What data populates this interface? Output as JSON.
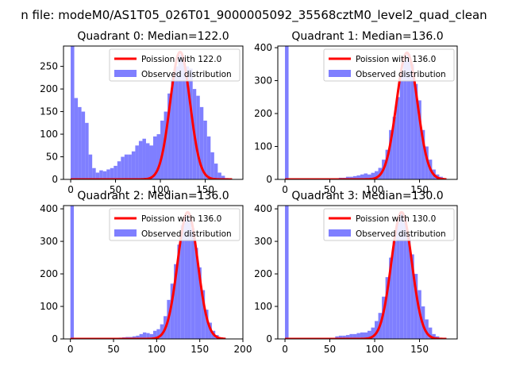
{
  "figure": {
    "suptitle": "n file: modeM0/AS1T05_026T01_9000005092_35568cztM0_level2_quad_clean"
  },
  "chart_data": [
    {
      "type": "bar+line",
      "title": "Quadrant 0: Median=122.0",
      "median": 122.0,
      "peak_height": 282,
      "legend": [
        "Poission with 122.0",
        "Observed distribution"
      ],
      "xticks": [
        0,
        50,
        100,
        150
      ],
      "yticks": [
        0,
        50,
        100,
        150,
        200,
        250
      ],
      "xlim": [
        -8,
        192
      ],
      "ylim": [
        0,
        295
      ],
      "bin_width": 4,
      "hist": [
        {
          "x": 0,
          "y": 295
        },
        {
          "x": 4,
          "y": 180
        },
        {
          "x": 8,
          "y": 160
        },
        {
          "x": 12,
          "y": 150
        },
        {
          "x": 16,
          "y": 125
        },
        {
          "x": 20,
          "y": 55
        },
        {
          "x": 24,
          "y": 25
        },
        {
          "x": 28,
          "y": 15
        },
        {
          "x": 32,
          "y": 20
        },
        {
          "x": 36,
          "y": 18
        },
        {
          "x": 40,
          "y": 22
        },
        {
          "x": 44,
          "y": 25
        },
        {
          "x": 48,
          "y": 30
        },
        {
          "x": 52,
          "y": 40
        },
        {
          "x": 56,
          "y": 50
        },
        {
          "x": 60,
          "y": 55
        },
        {
          "x": 64,
          "y": 55
        },
        {
          "x": 68,
          "y": 62
        },
        {
          "x": 72,
          "y": 75
        },
        {
          "x": 76,
          "y": 85
        },
        {
          "x": 80,
          "y": 90
        },
        {
          "x": 84,
          "y": 80
        },
        {
          "x": 88,
          "y": 75
        },
        {
          "x": 92,
          "y": 95
        },
        {
          "x": 96,
          "y": 100
        },
        {
          "x": 100,
          "y": 130
        },
        {
          "x": 104,
          "y": 150
        },
        {
          "x": 108,
          "y": 190
        },
        {
          "x": 112,
          "y": 235
        },
        {
          "x": 116,
          "y": 250
        },
        {
          "x": 120,
          "y": 275
        },
        {
          "x": 124,
          "y": 260
        },
        {
          "x": 128,
          "y": 250
        },
        {
          "x": 132,
          "y": 245
        },
        {
          "x": 136,
          "y": 200
        },
        {
          "x": 140,
          "y": 185
        },
        {
          "x": 144,
          "y": 160
        },
        {
          "x": 148,
          "y": 130
        },
        {
          "x": 152,
          "y": 95
        },
        {
          "x": 156,
          "y": 60
        },
        {
          "x": 160,
          "y": 35
        },
        {
          "x": 164,
          "y": 15
        },
        {
          "x": 168,
          "y": 8
        },
        {
          "x": 172,
          "y": 3
        }
      ]
    },
    {
      "type": "bar+line",
      "title": "Quadrant 1: Median=136.0",
      "median": 136.0,
      "peak_height": 385,
      "legend": [
        "Poission with 136.0",
        "Observed distribution"
      ],
      "xticks": [
        0,
        50,
        100,
        150
      ],
      "yticks": [
        0,
        100,
        200,
        300,
        400
      ],
      "xlim": [
        -8,
        192
      ],
      "ylim": [
        0,
        405
      ],
      "bin_width": 4,
      "hist": [
        {
          "x": 0,
          "y": 405
        },
        {
          "x": 60,
          "y": 5
        },
        {
          "x": 64,
          "y": 5
        },
        {
          "x": 68,
          "y": 8
        },
        {
          "x": 72,
          "y": 8
        },
        {
          "x": 76,
          "y": 10
        },
        {
          "x": 80,
          "y": 12
        },
        {
          "x": 84,
          "y": 15
        },
        {
          "x": 88,
          "y": 18
        },
        {
          "x": 92,
          "y": 15
        },
        {
          "x": 96,
          "y": 20
        },
        {
          "x": 100,
          "y": 25
        },
        {
          "x": 104,
          "y": 35
        },
        {
          "x": 108,
          "y": 60
        },
        {
          "x": 112,
          "y": 90
        },
        {
          "x": 116,
          "y": 150
        },
        {
          "x": 120,
          "y": 190
        },
        {
          "x": 124,
          "y": 250
        },
        {
          "x": 128,
          "y": 330
        },
        {
          "x": 132,
          "y": 360
        },
        {
          "x": 136,
          "y": 380
        },
        {
          "x": 140,
          "y": 350
        },
        {
          "x": 144,
          "y": 290
        },
        {
          "x": 148,
          "y": 240
        },
        {
          "x": 152,
          "y": 150
        },
        {
          "x": 156,
          "y": 100
        },
        {
          "x": 160,
          "y": 60
        },
        {
          "x": 164,
          "y": 30
        },
        {
          "x": 168,
          "y": 15
        },
        {
          "x": 172,
          "y": 8
        }
      ]
    },
    {
      "type": "bar+line",
      "title": "Quadrant 2: Median=136.0",
      "median": 136.0,
      "peak_height": 390,
      "legend": [
        "Poission with 136.0",
        "Observed distribution"
      ],
      "xticks": [
        0,
        50,
        100,
        150,
        200
      ],
      "yticks": [
        0,
        100,
        200,
        300,
        400
      ],
      "xlim": [
        -8,
        200
      ],
      "ylim": [
        0,
        410
      ],
      "bin_width": 4,
      "hist": [
        {
          "x": 0,
          "y": 410
        },
        {
          "x": 56,
          "y": 4
        },
        {
          "x": 60,
          "y": 5
        },
        {
          "x": 64,
          "y": 6
        },
        {
          "x": 68,
          "y": 6
        },
        {
          "x": 72,
          "y": 8
        },
        {
          "x": 76,
          "y": 10
        },
        {
          "x": 80,
          "y": 15
        },
        {
          "x": 84,
          "y": 20
        },
        {
          "x": 88,
          "y": 18
        },
        {
          "x": 92,
          "y": 15
        },
        {
          "x": 96,
          "y": 25
        },
        {
          "x": 100,
          "y": 30
        },
        {
          "x": 104,
          "y": 45
        },
        {
          "x": 108,
          "y": 70
        },
        {
          "x": 112,
          "y": 120
        },
        {
          "x": 116,
          "y": 170
        },
        {
          "x": 120,
          "y": 230
        },
        {
          "x": 124,
          "y": 290
        },
        {
          "x": 128,
          "y": 350
        },
        {
          "x": 132,
          "y": 380
        },
        {
          "x": 136,
          "y": 370
        },
        {
          "x": 140,
          "y": 340
        },
        {
          "x": 144,
          "y": 280
        },
        {
          "x": 148,
          "y": 220
        },
        {
          "x": 152,
          "y": 150
        },
        {
          "x": 156,
          "y": 90
        },
        {
          "x": 160,
          "y": 50
        },
        {
          "x": 164,
          "y": 25
        },
        {
          "x": 168,
          "y": 12
        },
        {
          "x": 172,
          "y": 5
        },
        {
          "x": 176,
          "y": 3
        }
      ]
    },
    {
      "type": "bar+line",
      "title": "Quadrant 3: Median=130.0",
      "median": 130.0,
      "peak_height": 390,
      "legend": [
        "Poission with 130.0",
        "Observed distribution"
      ],
      "xticks": [
        0,
        50,
        100,
        150
      ],
      "yticks": [
        0,
        100,
        200,
        300,
        400
      ],
      "xlim": [
        -8,
        192
      ],
      "ylim": [
        0,
        410
      ],
      "bin_width": 4,
      "hist": [
        {
          "x": 0,
          "y": 410
        },
        {
          "x": 56,
          "y": 8
        },
        {
          "x": 60,
          "y": 10
        },
        {
          "x": 64,
          "y": 10
        },
        {
          "x": 68,
          "y": 12
        },
        {
          "x": 72,
          "y": 15
        },
        {
          "x": 76,
          "y": 15
        },
        {
          "x": 80,
          "y": 18
        },
        {
          "x": 84,
          "y": 20
        },
        {
          "x": 88,
          "y": 20
        },
        {
          "x": 92,
          "y": 25
        },
        {
          "x": 96,
          "y": 35
        },
        {
          "x": 100,
          "y": 55
        },
        {
          "x": 104,
          "y": 80
        },
        {
          "x": 108,
          "y": 130
        },
        {
          "x": 112,
          "y": 190
        },
        {
          "x": 116,
          "y": 250
        },
        {
          "x": 120,
          "y": 300
        },
        {
          "x": 124,
          "y": 360
        },
        {
          "x": 128,
          "y": 390
        },
        {
          "x": 132,
          "y": 370
        },
        {
          "x": 136,
          "y": 320
        },
        {
          "x": 140,
          "y": 260
        },
        {
          "x": 144,
          "y": 200
        },
        {
          "x": 148,
          "y": 150
        },
        {
          "x": 152,
          "y": 100
        },
        {
          "x": 156,
          "y": 60
        },
        {
          "x": 160,
          "y": 35
        },
        {
          "x": 164,
          "y": 15
        },
        {
          "x": 168,
          "y": 8
        },
        {
          "x": 172,
          "y": 3
        }
      ]
    }
  ],
  "colors": {
    "hist": "#7f7fff",
    "line": "#ff0000",
    "axis": "#000000",
    "legend_border": "#cccccc"
  }
}
